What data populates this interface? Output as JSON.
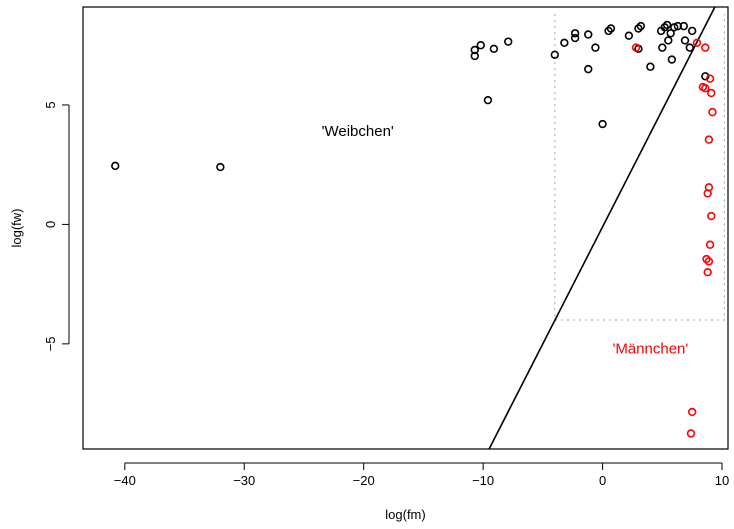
{
  "chart_data": {
    "type": "scatter",
    "title": "",
    "xlabel": "log(fm)",
    "ylabel": "log(fw)",
    "xlim": [
      -43.5,
      10.5
    ],
    "ylim": [
      -9.4,
      9.1
    ],
    "x_ticks": [
      -40,
      -30,
      -20,
      -10,
      0,
      10
    ],
    "y_ticks": [
      -5,
      0,
      5
    ],
    "x_tick_labels": [
      "−40",
      "−30",
      "−20",
      "−10",
      "0",
      "10"
    ],
    "y_tick_labels": [
      "−5",
      "0",
      "5"
    ],
    "grid": false,
    "legend": "none",
    "colors": {
      "black_group": "#000000",
      "red_group": "#ff0000",
      "dotted_box": "#b0b0b0"
    },
    "annotations": [
      {
        "text": "'Weibchen'",
        "x": -20.5,
        "y": 3.9,
        "color": "#000000"
      },
      {
        "text": "'Männchen'",
        "x": 4.0,
        "y": -5.2,
        "color": "#ff0000"
      }
    ],
    "reference_line": {
      "points": [
        [
          -9.5,
          -9.4
        ],
        [
          9.4,
          9.1
        ]
      ]
    },
    "dotted_box": {
      "x": [
        -4.0,
        10.2
      ],
      "y": [
        -4.0,
        8.8
      ]
    },
    "series": [
      {
        "color": "#000000",
        "points": [
          [
            -40.8,
            2.45
          ],
          [
            -32.0,
            2.4
          ],
          [
            -10.7,
            7.05
          ],
          [
            -10.7,
            7.3
          ],
          [
            -10.2,
            7.5
          ],
          [
            -9.1,
            7.35
          ],
          [
            -7.9,
            7.65
          ],
          [
            -9.6,
            5.2
          ],
          [
            -4.0,
            7.1
          ],
          [
            -3.2,
            7.6
          ],
          [
            -2.3,
            7.8
          ],
          [
            -2.3,
            8.0
          ],
          [
            -1.2,
            7.95
          ],
          [
            -0.6,
            7.4
          ],
          [
            -1.2,
            6.5
          ],
          [
            0.0,
            4.2
          ],
          [
            0.5,
            8.1
          ],
          [
            0.7,
            8.2
          ],
          [
            2.2,
            7.9
          ],
          [
            3.0,
            7.35
          ],
          [
            3.0,
            8.2
          ],
          [
            3.2,
            8.3
          ],
          [
            4.0,
            6.6
          ],
          [
            4.9,
            8.1
          ],
          [
            5.0,
            7.4
          ],
          [
            5.2,
            8.25
          ],
          [
            5.4,
            8.35
          ],
          [
            5.5,
            7.7
          ],
          [
            5.7,
            8.0
          ],
          [
            5.8,
            6.9
          ],
          [
            6.0,
            8.25
          ],
          [
            6.3,
            8.3
          ],
          [
            6.8,
            8.3
          ],
          [
            6.9,
            7.7
          ],
          [
            7.3,
            7.4
          ],
          [
            7.5,
            8.1
          ],
          [
            8.6,
            6.2
          ]
        ]
      },
      {
        "color": "#ff0000",
        "points": [
          [
            2.8,
            7.4
          ],
          [
            7.9,
            7.6
          ],
          [
            8.6,
            7.4
          ],
          [
            8.4,
            5.75
          ],
          [
            8.6,
            5.7
          ],
          [
            9.0,
            6.1
          ],
          [
            9.1,
            5.5
          ],
          [
            9.2,
            4.7
          ],
          [
            8.9,
            3.55
          ],
          [
            8.9,
            1.55
          ],
          [
            8.8,
            1.3
          ],
          [
            9.1,
            0.35
          ],
          [
            9.0,
            -0.85
          ],
          [
            8.7,
            -1.45
          ],
          [
            8.9,
            -1.55
          ],
          [
            8.8,
            -2.0
          ],
          [
            7.5,
            -7.85
          ],
          [
            7.4,
            -8.75
          ]
        ]
      }
    ]
  }
}
